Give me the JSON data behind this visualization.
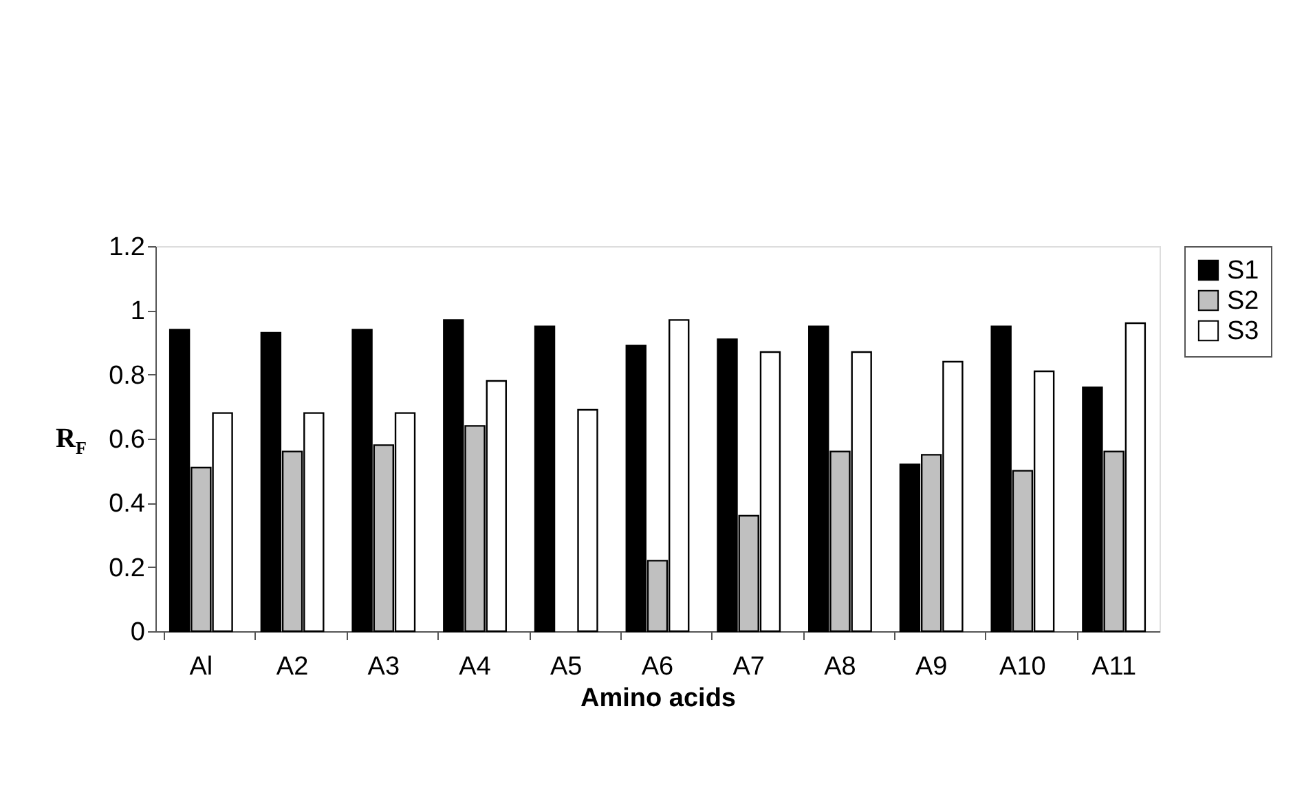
{
  "chart_data": {
    "type": "bar",
    "xlabel": "Amino acids",
    "ylabel": "R$_{F}$",
    "categories": [
      "Al",
      "A2",
      "A3",
      "A4",
      "A5",
      "A6",
      "A7",
      "A8",
      "A9",
      "A10",
      "A11"
    ],
    "series": [
      {
        "name": "S1",
        "color": "#000000",
        "values": [
          0.94,
          0.93,
          0.94,
          0.97,
          0.95,
          0.89,
          0.91,
          0.95,
          0.52,
          0.95,
          0.76
        ]
      },
      {
        "name": "S2",
        "color": "#c0c0c0",
        "values": [
          0.51,
          0.56,
          0.58,
          0.64,
          null,
          0.22,
          0.36,
          0.56,
          0.55,
          0.5,
          0.56
        ]
      },
      {
        "name": "S3",
        "color": "#ffffff",
        "values": [
          0.68,
          0.68,
          0.68,
          0.78,
          0.69,
          0.97,
          0.87,
          0.87,
          0.84,
          0.81,
          0.96
        ]
      }
    ],
    "ylim": [
      0,
      1.2
    ],
    "yticks": [
      0,
      0.2,
      0.4,
      0.6,
      0.8,
      1,
      1.2
    ],
    "grid": false,
    "legend": "right"
  }
}
